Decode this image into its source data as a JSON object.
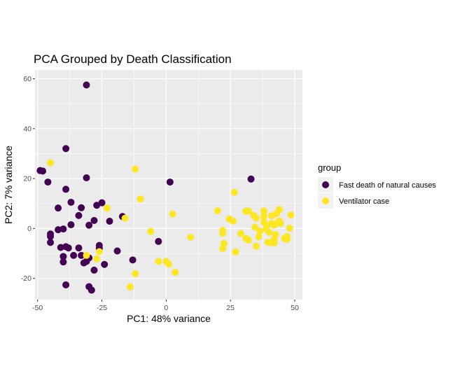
{
  "chart_data": {
    "type": "scatter",
    "title": "PCA Grouped by Death Classification",
    "xlabel": "PC1: 48% variance",
    "ylabel": "PC2: 7% variance",
    "xlim": [
      -51,
      53
    ],
    "ylim": [
      -28.5,
      63.5
    ],
    "x_ticks": [
      -50,
      -25,
      0,
      25,
      50
    ],
    "x_tick_labels": [
      "-50",
      "-25",
      "0",
      "25",
      "50"
    ],
    "y_ticks": [
      -20,
      0,
      20,
      40,
      60
    ],
    "y_tick_labels": [
      "-20",
      "0",
      "20",
      "40",
      "60"
    ],
    "grid": true,
    "legend": {
      "title": "group",
      "position": "right"
    },
    "series": [
      {
        "name": "Fast death of natural causes",
        "color": "#440154",
        "points": [
          [
            -31,
            57.5
          ],
          [
            -49,
            23.2
          ],
          [
            -48,
            23.0
          ],
          [
            -39,
            32
          ],
          [
            -46,
            18.6
          ],
          [
            -31,
            20.3
          ],
          [
            -39,
            15.7
          ],
          [
            -37,
            10.5
          ],
          [
            -42,
            8.2
          ],
          [
            -33,
            8.3
          ],
          [
            -27,
            9.3
          ],
          [
            -25,
            10.3
          ],
          [
            -17,
            4.8
          ],
          [
            -34,
            5.2
          ],
          [
            -28,
            3.2
          ],
          [
            -22,
            2.9
          ],
          [
            -37,
            1.5
          ],
          [
            -30,
            1.3
          ],
          [
            -40,
            -0.2
          ],
          [
            -42,
            -0.5
          ],
          [
            -45,
            -2.2
          ],
          [
            -45,
            -3.2
          ],
          [
            -45,
            -5.6
          ],
          [
            -41,
            -7.6
          ],
          [
            -39,
            -7.3
          ],
          [
            -38,
            -7.8
          ],
          [
            -34,
            -7.8
          ],
          [
            -26,
            -6.8
          ],
          [
            -26,
            -7.9
          ],
          [
            -19,
            -9.0
          ],
          [
            -36,
            -10.8
          ],
          [
            -33,
            -10.8
          ],
          [
            -40,
            -11.2
          ],
          [
            -40,
            -13.4
          ],
          [
            -30,
            -11.8
          ],
          [
            -31,
            -13.2
          ],
          [
            -24,
            -14.4
          ],
          [
            -32,
            -13.8
          ],
          [
            -13,
            -12.6
          ],
          [
            -3,
            -5.2
          ],
          [
            -28,
            -16.7
          ],
          [
            -39,
            -22.6
          ],
          [
            -30,
            -23.3
          ],
          [
            -29,
            -24.7
          ],
          [
            1.5,
            18.6
          ],
          [
            33,
            19.8
          ]
        ]
      },
      {
        "name": "Ventilator case",
        "color": "#fde725",
        "points": [
          [
            -45,
            26.3
          ],
          [
            -12,
            23.8
          ],
          [
            -23,
            8.2
          ],
          [
            -10,
            11.8
          ],
          [
            -16,
            4.1
          ],
          [
            -6,
            -1.2
          ],
          [
            2.5,
            5.8
          ],
          [
            9.5,
            -3.5
          ],
          [
            -31,
            -10.8
          ],
          [
            -26,
            -9.3
          ],
          [
            -27,
            -12.2
          ],
          [
            -12,
            -18.1
          ],
          [
            -14,
            -23.4
          ],
          [
            -3,
            -13.2
          ],
          [
            0,
            -13.2
          ],
          [
            1,
            -14.3
          ],
          [
            3.5,
            -17.6
          ],
          [
            26.5,
            14.5
          ],
          [
            20,
            7.1
          ],
          [
            24.5,
            3.8
          ],
          [
            26,
            3.0
          ],
          [
            22,
            -0.8
          ],
          [
            22,
            -1.9
          ],
          [
            22.5,
            -6.0
          ],
          [
            22,
            -8.0
          ],
          [
            27,
            -9.4
          ],
          [
            29,
            -2.0
          ],
          [
            31,
            6.9
          ],
          [
            32,
            7.0
          ],
          [
            34,
            5.3
          ],
          [
            35,
            4.1
          ],
          [
            31,
            -4.0
          ],
          [
            32,
            -4.7
          ],
          [
            34.5,
            0.5
          ],
          [
            35,
            -7.1
          ],
          [
            36,
            -3.3
          ],
          [
            38,
            7.0
          ],
          [
            38,
            4.8
          ],
          [
            38,
            2.5
          ],
          [
            39,
            1.1
          ],
          [
            39,
            -0.2
          ],
          [
            39.5,
            -5.5
          ],
          [
            40,
            -1.5
          ],
          [
            41,
            5.1
          ],
          [
            41,
            2.0
          ],
          [
            42,
            1.3
          ],
          [
            42.5,
            -2.5
          ],
          [
            42,
            -4.4
          ],
          [
            42,
            -5.8
          ],
          [
            43,
            6.0
          ],
          [
            44,
            7.6
          ],
          [
            44,
            3.0
          ],
          [
            44.5,
            2.0
          ],
          [
            46,
            -4.0
          ],
          [
            47,
            -4.4
          ],
          [
            47,
            -3.2
          ],
          [
            48,
            0.1
          ],
          [
            48.5,
            5.4
          ],
          [
            40.5,
            -5.6
          ],
          [
            36.5,
            -1.0
          ],
          [
            43.5,
            2.5
          ]
        ]
      }
    ]
  }
}
